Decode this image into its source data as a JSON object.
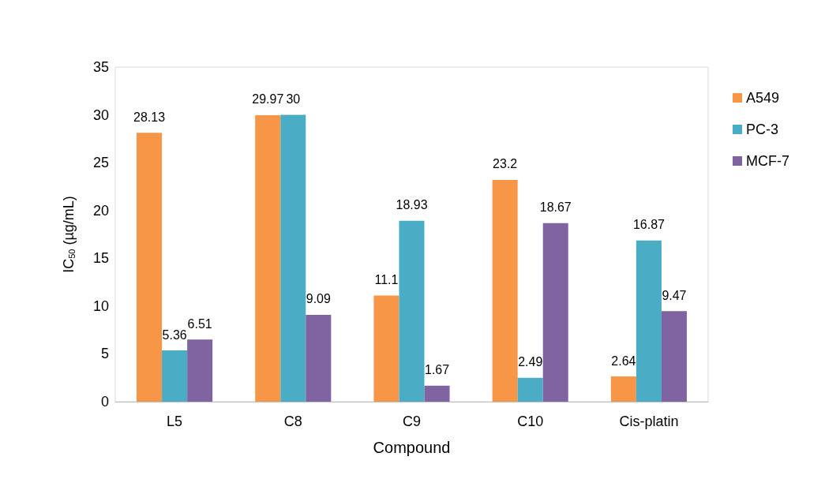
{
  "chart_data": {
    "type": "bar",
    "xlabel": "Compound",
    "ylabel": "IC$_{50}$ (µg/mL)",
    "categories": [
      "L5",
      "C8",
      "C9",
      "C10",
      "Cis-platin"
    ],
    "series": [
      {
        "name": "A549",
        "color": "#f79646",
        "values": [
          28.13,
          29.97,
          11.1,
          23.2,
          2.64
        ]
      },
      {
        "name": "PC-3",
        "color": "#4bacc6",
        "values": [
          5.36,
          30,
          18.93,
          2.49,
          16.87
        ]
      },
      {
        "name": "MCF-7",
        "color": "#8064a2",
        "values": [
          6.51,
          9.09,
          1.67,
          18.67,
          9.47
        ]
      }
    ],
    "ylim": [
      0,
      35
    ],
    "yticks": [
      0,
      5,
      10,
      15,
      20,
      25,
      30,
      35
    ],
    "grid": false,
    "legend": "top right",
    "data_labels": true
  }
}
